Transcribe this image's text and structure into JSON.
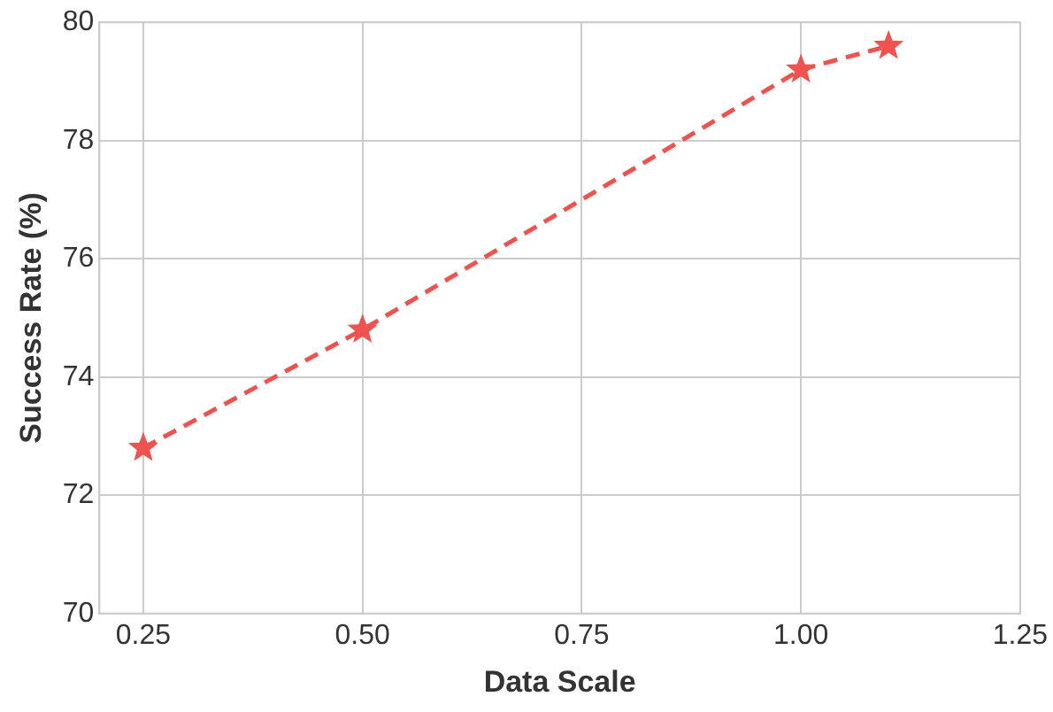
{
  "chart_data": {
    "type": "line",
    "xlabel": "Data Scale",
    "ylabel": "Success Rate (%)",
    "x": [
      0.25,
      0.5,
      1.0,
      1.1
    ],
    "series": [
      {
        "color": "#ef5350",
        "values": [
          72.8,
          74.8,
          79.2,
          79.6
        ]
      }
    ],
    "xlim": [
      0.2,
      1.25
    ],
    "ylim": [
      70,
      80
    ],
    "xticks": [
      0.25,
      {
        "value": 0.5,
        "label": "0.50"
      },
      0.75,
      {
        "value": 1.0,
        "label": "1.00"
      },
      1.25
    ],
    "yticks": [
      70,
      72,
      74,
      76,
      78,
      80
    ],
    "grid": true,
    "legend": false,
    "marker": "star",
    "line_style": "dashed"
  }
}
